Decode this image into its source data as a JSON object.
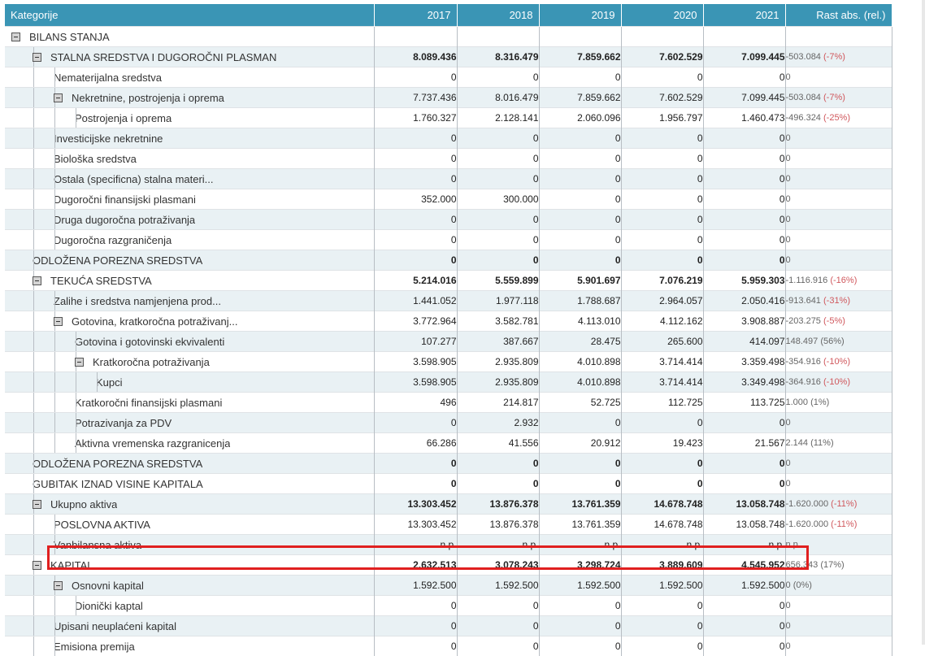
{
  "header": {
    "category_label": "Kategorije",
    "years": [
      "2017",
      "2018",
      "2019",
      "2020",
      "2021"
    ],
    "growth_label": "Rast abs. (rel.)"
  },
  "rows": [
    {
      "label": "BILANS STANJA",
      "level": 0,
      "toggle": true,
      "bold": false,
      "shaded": false,
      "values": [
        "",
        "",
        "",
        "",
        ""
      ],
      "growth_abs": "",
      "growth_rel": ""
    },
    {
      "label": "STALNA SREDSTVA I DUGOROČNI PLASMAN",
      "level": 1,
      "toggle": true,
      "bold": true,
      "shaded": true,
      "values": [
        "8.089.436",
        "8.316.479",
        "7.859.662",
        "7.602.529",
        "7.099.445"
      ],
      "growth_abs": "-503.084",
      "growth_rel": "(-7%)"
    },
    {
      "label": "Nematerijalna sredstva",
      "level": 2,
      "toggle": false,
      "bold": false,
      "shaded": false,
      "values": [
        "0",
        "0",
        "0",
        "0",
        "0"
      ],
      "growth_abs": "0",
      "growth_rel": ""
    },
    {
      "label": "Nekretnine, postrojenja i oprema",
      "level": 2,
      "toggle": true,
      "bold": false,
      "shaded": true,
      "values": [
        "7.737.436",
        "8.016.479",
        "7.859.662",
        "7.602.529",
        "7.099.445"
      ],
      "growth_abs": "-503.084",
      "growth_rel": "(-7%)"
    },
    {
      "label": "Postrojenja i oprema",
      "level": 3,
      "toggle": false,
      "bold": false,
      "shaded": false,
      "values": [
        "1.760.327",
        "2.128.141",
        "2.060.096",
        "1.956.797",
        "1.460.473"
      ],
      "growth_abs": "-496.324",
      "growth_rel": "(-25%)"
    },
    {
      "label": "Investicijske nekretnine",
      "level": 2,
      "toggle": false,
      "bold": false,
      "shaded": true,
      "values": [
        "0",
        "0",
        "0",
        "0",
        "0"
      ],
      "growth_abs": "0",
      "growth_rel": ""
    },
    {
      "label": "Biološka sredstva",
      "level": 2,
      "toggle": false,
      "bold": false,
      "shaded": false,
      "values": [
        "0",
        "0",
        "0",
        "0",
        "0"
      ],
      "growth_abs": "0",
      "growth_rel": ""
    },
    {
      "label": "Ostala (specificna) stalna materi...",
      "level": 2,
      "toggle": false,
      "bold": false,
      "shaded": true,
      "values": [
        "0",
        "0",
        "0",
        "0",
        "0"
      ],
      "growth_abs": "0",
      "growth_rel": ""
    },
    {
      "label": "Dugoročni finansijski plasmani",
      "level": 2,
      "toggle": false,
      "bold": false,
      "shaded": false,
      "values": [
        "352.000",
        "300.000",
        "0",
        "0",
        "0"
      ],
      "growth_abs": "0",
      "growth_rel": ""
    },
    {
      "label": "Druga dugoročna potraživanja",
      "level": 2,
      "toggle": false,
      "bold": false,
      "shaded": true,
      "values": [
        "0",
        "0",
        "0",
        "0",
        "0"
      ],
      "growth_abs": "0",
      "growth_rel": ""
    },
    {
      "label": "Dugoročna razgraničenja",
      "level": 2,
      "toggle": false,
      "bold": false,
      "shaded": false,
      "values": [
        "0",
        "0",
        "0",
        "0",
        "0"
      ],
      "growth_abs": "0",
      "growth_rel": ""
    },
    {
      "label": "ODLOŽENA POREZNA SREDSTVA",
      "level": 1,
      "toggle": false,
      "bold": true,
      "shaded": true,
      "values": [
        "0",
        "0",
        "0",
        "0",
        "0"
      ],
      "growth_abs": "0",
      "growth_rel": ""
    },
    {
      "label": "TEKUĆA SREDSTVA",
      "level": 1,
      "toggle": true,
      "bold": true,
      "shaded": false,
      "values": [
        "5.214.016",
        "5.559.899",
        "5.901.697",
        "7.076.219",
        "5.959.303"
      ],
      "growth_abs": "-1.116.916",
      "growth_rel": "(-16%)"
    },
    {
      "label": "Zalihe i sredstva namjenjena prod...",
      "level": 2,
      "toggle": false,
      "bold": false,
      "shaded": true,
      "values": [
        "1.441.052",
        "1.977.118",
        "1.788.687",
        "2.964.057",
        "2.050.416"
      ],
      "growth_abs": "-913.641",
      "growth_rel": "(-31%)"
    },
    {
      "label": "Gotovina, kratkoročna potraživanj...",
      "level": 2,
      "toggle": true,
      "bold": false,
      "shaded": false,
      "values": [
        "3.772.964",
        "3.582.781",
        "4.113.010",
        "4.112.162",
        "3.908.887"
      ],
      "growth_abs": "-203.275",
      "growth_rel": "(-5%)"
    },
    {
      "label": "Gotovina i gotovinski ekvivalenti",
      "level": 3,
      "toggle": false,
      "bold": false,
      "shaded": true,
      "values": [
        "107.277",
        "387.667",
        "28.475",
        "265.600",
        "414.097"
      ],
      "growth_abs": "148.497",
      "growth_rel": "(56%)"
    },
    {
      "label": "Kratkoročna potraživanja",
      "level": 3,
      "toggle": true,
      "bold": false,
      "shaded": false,
      "values": [
        "3.598.905",
        "2.935.809",
        "4.010.898",
        "3.714.414",
        "3.359.498"
      ],
      "growth_abs": "-354.916",
      "growth_rel": "(-10%)"
    },
    {
      "label": "Kupci",
      "level": 4,
      "toggle": false,
      "bold": false,
      "shaded": true,
      "values": [
        "3.598.905",
        "2.935.809",
        "4.010.898",
        "3.714.414",
        "3.349.498"
      ],
      "growth_abs": "-364.916",
      "growth_rel": "(-10%)"
    },
    {
      "label": "Kratkoročni finansijski plasmani",
      "level": 3,
      "toggle": false,
      "bold": false,
      "shaded": false,
      "values": [
        "496",
        "214.817",
        "52.725",
        "112.725",
        "113.725"
      ],
      "growth_abs": "1.000",
      "growth_rel": "(1%)"
    },
    {
      "label": "Potrazivanja za PDV",
      "level": 3,
      "toggle": false,
      "bold": false,
      "shaded": true,
      "values": [
        "0",
        "2.932",
        "0",
        "0",
        "0"
      ],
      "growth_abs": "0",
      "growth_rel": ""
    },
    {
      "label": "Aktivna vremenska razgranicenja",
      "level": 3,
      "toggle": false,
      "bold": false,
      "shaded": false,
      "values": [
        "66.286",
        "41.556",
        "20.912",
        "19.423",
        "21.567"
      ],
      "growth_abs": "2.144",
      "growth_rel": "(11%)"
    },
    {
      "label": "ODLOŽENA POREZNA SREDSTVA",
      "level": 1,
      "toggle": false,
      "bold": true,
      "shaded": true,
      "values": [
        "0",
        "0",
        "0",
        "0",
        "0"
      ],
      "growth_abs": "0",
      "growth_rel": ""
    },
    {
      "label": "GUBITAK IZNAD VISINE KAPITALA",
      "level": 1,
      "toggle": false,
      "bold": true,
      "shaded": false,
      "values": [
        "0",
        "0",
        "0",
        "0",
        "0"
      ],
      "growth_abs": "0",
      "growth_rel": ""
    },
    {
      "label": "Ukupno aktiva",
      "level": 1,
      "toggle": true,
      "bold": true,
      "shaded": true,
      "values": [
        "13.303.452",
        "13.876.378",
        "13.761.359",
        "14.678.748",
        "13.058.748"
      ],
      "growth_abs": "-1.620.000",
      "growth_rel": "(-11%)"
    },
    {
      "label": "POSLOVNA AKTIVA",
      "level": 2,
      "toggle": false,
      "bold": false,
      "shaded": false,
      "values": [
        "13.303.452",
        "13.876.378",
        "13.761.359",
        "14.678.748",
        "13.058.748"
      ],
      "growth_abs": "-1.620.000",
      "growth_rel": "(-11%)"
    },
    {
      "label": "Vanbilansna aktiva",
      "level": 2,
      "toggle": false,
      "bold": false,
      "shaded": true,
      "values": [
        "n.p.",
        "n.p.",
        "n.p.",
        "n.p.",
        "n.p."
      ],
      "growth_abs": "n.p.",
      "growth_rel": ""
    },
    {
      "label": "KAPITAL",
      "level": 1,
      "toggle": true,
      "bold": true,
      "shaded": false,
      "values": [
        "2.632.513",
        "3.078.243",
        "3.298.724",
        "3.889.609",
        "4.545.952"
      ],
      "growth_abs": "656.343",
      "growth_rel": "(17%)"
    },
    {
      "label": "Osnovni kapital",
      "level": 2,
      "toggle": true,
      "bold": false,
      "shaded": true,
      "values": [
        "1.592.500",
        "1.592.500",
        "1.592.500",
        "1.592.500",
        "1.592.500"
      ],
      "growth_abs": "0",
      "growth_rel": "(0%)"
    },
    {
      "label": "Dionički kaptal",
      "level": 3,
      "toggle": false,
      "bold": false,
      "shaded": false,
      "values": [
        "0",
        "0",
        "0",
        "0",
        "0"
      ],
      "growth_abs": "0",
      "growth_rel": ""
    },
    {
      "label": "Upisani neuplaćeni kapital",
      "level": 2,
      "toggle": false,
      "bold": false,
      "shaded": true,
      "values": [
        "0",
        "0",
        "0",
        "0",
        "0"
      ],
      "growth_abs": "0",
      "growth_rel": ""
    },
    {
      "label": "Emisiona premija",
      "level": 2,
      "toggle": false,
      "bold": false,
      "shaded": false,
      "values": [
        "0",
        "0",
        "0",
        "0",
        "0"
      ],
      "growth_abs": "0",
      "growth_rel": ""
    }
  ],
  "colors": {
    "header_bg": "#3a95b5",
    "row_shade": "#e9f1f4",
    "negative": "#d0585d",
    "highlight": "#e02020"
  }
}
